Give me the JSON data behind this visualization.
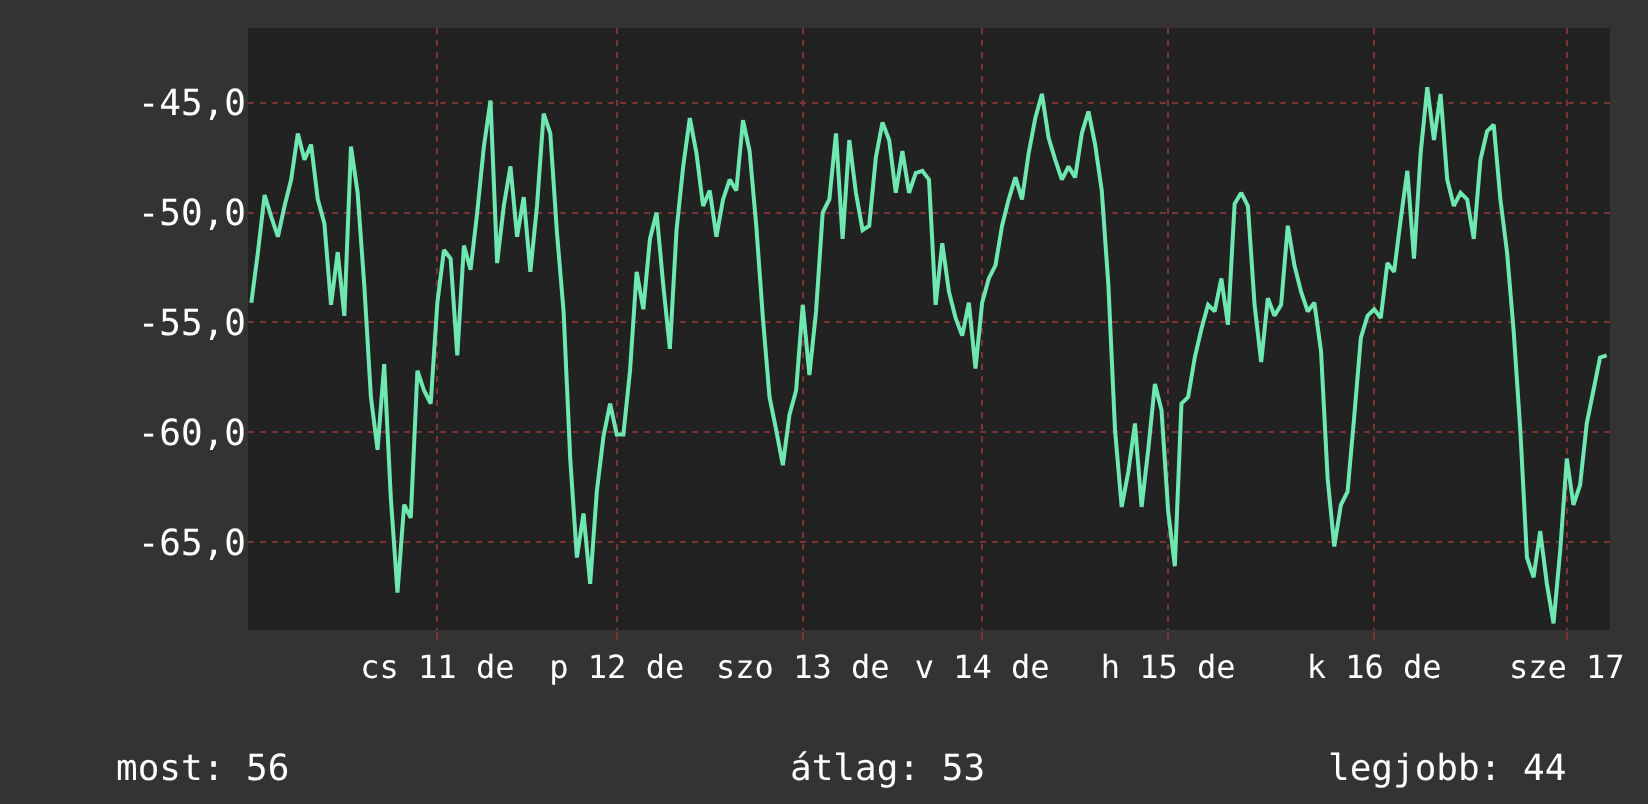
{
  "chart_data": {
    "type": "line",
    "series": [
      {
        "color": "#6ee8b0",
        "values": [
          -54.1,
          -51.8,
          -49.2,
          -50.2,
          -51.1,
          -49.7,
          -48.5,
          -46.4,
          -47.6,
          -46.9,
          -49.4,
          -50.5,
          -54.2,
          -51.8,
          -54.7,
          -47.0,
          -49.1,
          -53.3,
          -58.4,
          -60.8,
          -56.9,
          -63.0,
          -67.3,
          -63.3,
          -63.9,
          -57.2,
          -58.1,
          -58.7,
          -54.1,
          -51.7,
          -52.1,
          -56.5,
          -51.5,
          -52.6,
          -50.0,
          -47.0,
          -44.9,
          -52.3,
          -49.7,
          -47.9,
          -51.1,
          -49.3,
          -52.7,
          -49.7,
          -45.5,
          -46.4,
          -50.9,
          -54.5,
          -61.2,
          -65.7,
          -63.7,
          -66.9,
          -62.7,
          -60.2,
          -58.7,
          -60.1,
          -60.1,
          -57.2,
          -52.7,
          -54.4,
          -51.2,
          -50.0,
          -53.3,
          -56.2,
          -50.8,
          -47.9,
          -45.7,
          -47.3,
          -49.7,
          -49.0,
          -51.1,
          -49.4,
          -48.5,
          -49.0,
          -45.8,
          -47.2,
          -50.6,
          -54.8,
          -58.4,
          -59.9,
          -61.5,
          -59.2,
          -58.1,
          -54.2,
          -57.4,
          -54.5,
          -50.0,
          -49.4,
          -46.4,
          -51.2,
          -46.7,
          -49.1,
          -50.8,
          -50.6,
          -47.5,
          -45.9,
          -46.7,
          -49.1,
          -47.2,
          -49.1,
          -48.2,
          -48.1,
          -48.5,
          -54.2,
          -51.4,
          -53.6,
          -54.8,
          -55.6,
          -54.1,
          -57.1,
          -54.1,
          -53.0,
          -52.4,
          -50.6,
          -49.4,
          -48.4,
          -49.4,
          -47.3,
          -45.7,
          -44.6,
          -46.6,
          -47.6,
          -48.5,
          -47.9,
          -48.4,
          -46.4,
          -45.4,
          -46.9,
          -49.0,
          -53.3,
          -59.9,
          -63.4,
          -61.8,
          -59.6,
          -63.4,
          -60.8,
          -57.8,
          -59.0,
          -63.6,
          -66.1,
          -58.7,
          -58.4,
          -56.6,
          -55.3,
          -54.2,
          -54.5,
          -53.0,
          -55.1,
          -49.6,
          -49.1,
          -49.7,
          -54.2,
          -56.8,
          -53.9,
          -54.7,
          -54.2,
          -50.6,
          -52.4,
          -53.6,
          -54.5,
          -54.1,
          -56.3,
          -62.1,
          -65.2,
          -63.3,
          -62.7,
          -59.3,
          -55.7,
          -54.7,
          -54.4,
          -54.8,
          -52.3,
          -52.7,
          -50.3,
          -48.1,
          -52.1,
          -47.3,
          -44.3,
          -46.7,
          -44.6,
          -48.5,
          -49.7,
          -49.1,
          -49.4,
          -51.2,
          -47.6,
          -46.3,
          -46.0,
          -49.4,
          -51.8,
          -55.4,
          -59.9,
          -65.7,
          -66.6,
          -64.5,
          -66.9,
          -68.7,
          -65.4,
          -61.2,
          -63.3,
          -62.4,
          -59.6,
          -58.1,
          -56.6,
          -56.5
        ]
      }
    ],
    "categories": [
      null,
      null,
      null,
      null,
      null,
      null,
      null,
      null,
      null,
      null,
      null,
      null,
      null,
      null,
      null,
      null,
      null,
      null,
      null,
      null,
      null,
      null,
      null,
      null,
      null,
      null,
      null,
      null,
      "cs 11 de",
      null,
      null,
      null,
      null,
      null,
      null,
      null,
      null,
      null,
      null,
      null,
      null,
      null,
      null,
      null,
      null,
      null,
      null,
      null,
      null,
      null,
      null,
      null,
      null,
      null,
      null,
      "p 12 de",
      null,
      null,
      null,
      null,
      null,
      null,
      null,
      null,
      null,
      null,
      null,
      null,
      null,
      null,
      null,
      null,
      null,
      null,
      null,
      null,
      null,
      null,
      null,
      null,
      null,
      null,
      null,
      "szo 13 de",
      null,
      null,
      null,
      null,
      null,
      null,
      null,
      null,
      null,
      null,
      null,
      null,
      null,
      null,
      null,
      null,
      null,
      null,
      null,
      null,
      null,
      null,
      null,
      null,
      null,
      null,
      "v 14 de",
      null,
      null,
      null,
      null,
      null,
      null,
      null,
      null,
      null,
      null,
      null,
      null,
      null,
      null,
      null,
      null,
      null,
      null,
      null,
      null,
      null,
      null,
      null,
      null,
      null,
      null,
      null,
      "h 15 de",
      null,
      null,
      null,
      null,
      null,
      null,
      null,
      null,
      null,
      null,
      null,
      null,
      null,
      null,
      null,
      null,
      null,
      null,
      null,
      null,
      null,
      null,
      null,
      null,
      null,
      null,
      null,
      null,
      null,
      null,
      "k 16 de",
      null,
      null,
      null,
      null,
      null,
      null,
      null,
      null,
      null,
      null,
      null,
      null,
      null,
      null,
      null,
      null,
      null,
      null,
      null,
      null,
      null,
      null,
      null,
      null,
      null,
      null,
      null,
      null,
      "sze 17",
      null,
      null,
      null,
      null,
      null,
      null
    ],
    "ylim": [
      -69.0,
      -41.6
    ],
    "yticks": [
      {
        "value": -65,
        "label": "-65,0"
      },
      {
        "value": -60,
        "label": "-60,0"
      },
      {
        "value": -55,
        "label": "-55,0"
      },
      {
        "value": -50,
        "label": "-50,0"
      },
      {
        "value": -45,
        "label": "-45,0"
      }
    ],
    "grid": true,
    "marker": "none",
    "line_style": "solid",
    "annotations": [
      "most: 56",
      "átlag: 53",
      "legjobb: 44"
    ]
  }
}
